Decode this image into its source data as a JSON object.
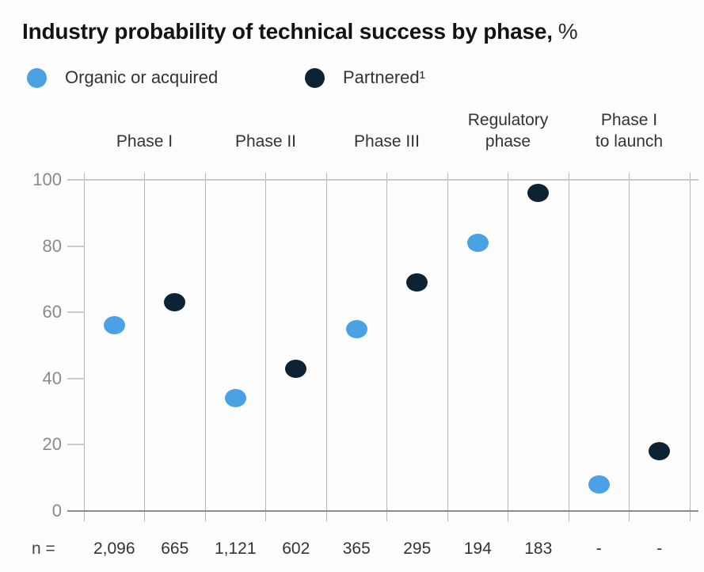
{
  "title": {
    "main": "Industry probability of technical success by phase,",
    "suffix": "%"
  },
  "legend": [
    {
      "label": "Organic or acquired",
      "color": "#4aa2e4"
    },
    {
      "label": "Partnered¹",
      "color": "#0d2232"
    }
  ],
  "chart_data": {
    "type": "scatter",
    "title": "Industry probability of technical success by phase, %",
    "xlabel": "",
    "ylabel": "",
    "ylim": [
      0,
      100
    ],
    "yticks": [
      0,
      20,
      40,
      60,
      80,
      100
    ],
    "grid": "vertical-columns-only",
    "legend_position": "top-left",
    "phases": [
      {
        "label": "Phase I",
        "lines": [
          "Phase I"
        ]
      },
      {
        "label": "Phase II",
        "lines": [
          "Phase II"
        ]
      },
      {
        "label": "Phase III",
        "lines": [
          "Phase III"
        ]
      },
      {
        "label": "Regulatory phase",
        "lines": [
          "Regulatory",
          "phase"
        ]
      },
      {
        "label": "Phase I to launch",
        "lines": [
          "Phase I",
          "to launch"
        ]
      }
    ],
    "series": [
      {
        "name": "Organic or acquired",
        "color": "#4aa2e4",
        "values": [
          56,
          34,
          55,
          81,
          8
        ]
      },
      {
        "name": "Partnered¹",
        "color": "#0d2232",
        "values": [
          63,
          43,
          69,
          96,
          18
        ]
      }
    ],
    "n_label": "n =",
    "n_values": [
      "2,096",
      "665",
      "1,121",
      "602",
      "365",
      "295",
      "194",
      "183",
      "-",
      "-"
    ]
  }
}
